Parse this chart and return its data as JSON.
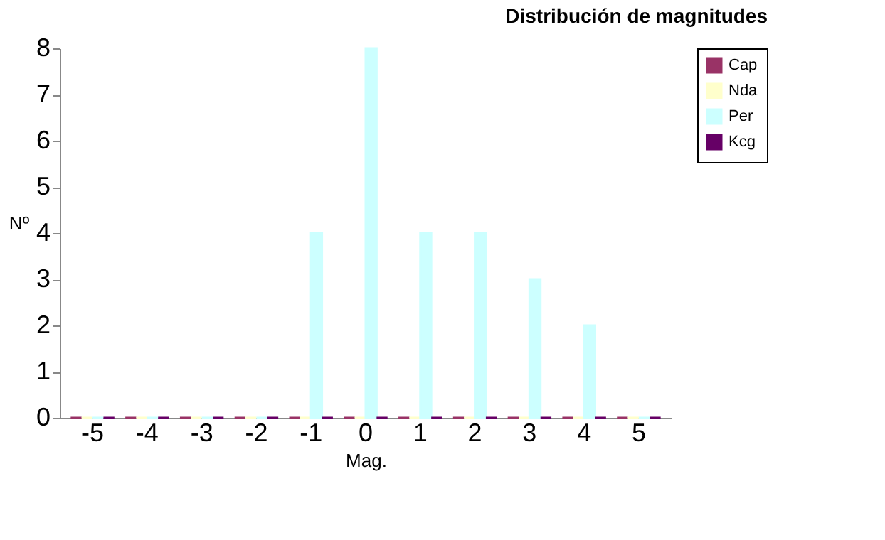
{
  "chart_data": {
    "type": "bar",
    "title": "Distribución de magnitudes",
    "xlabel": "Mag.",
    "ylabel": "Nº",
    "categories": [
      "-5",
      "-4",
      "-3",
      "-2",
      "-1",
      "0",
      "1",
      "2",
      "3",
      "4",
      "5"
    ],
    "series": [
      {
        "name": "Cap",
        "color": "#993366",
        "values": [
          0,
          0,
          0,
          0,
          0,
          0,
          0,
          0,
          0,
          0,
          0
        ]
      },
      {
        "name": "Nda",
        "color": "#ffffcc",
        "values": [
          0,
          0,
          0,
          0,
          0,
          0,
          0,
          0,
          0,
          0,
          0
        ]
      },
      {
        "name": "Per",
        "color": "#ccffff",
        "values": [
          0,
          0,
          0,
          0,
          4,
          8,
          4,
          4,
          3,
          2,
          0
        ]
      },
      {
        "name": "Kcg",
        "color": "#660066",
        "values": [
          0,
          0,
          0,
          0,
          0,
          0,
          0,
          0,
          0,
          0,
          0
        ]
      }
    ],
    "ylim": [
      0,
      8
    ],
    "yticks": [
      0,
      1,
      2,
      3,
      4,
      5,
      6,
      7,
      8
    ],
    "grid": false,
    "legend": "right"
  }
}
